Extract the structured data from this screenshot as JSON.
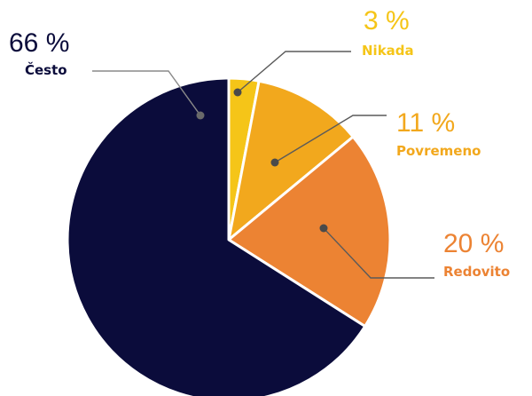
{
  "chart_data": {
    "type": "pie",
    "categories": [
      "Nikada",
      "Povremeno",
      "Redovito",
      "Često"
    ],
    "values": [
      3,
      11,
      20,
      66
    ],
    "value_labels": [
      "3 %",
      "11 %",
      "20 %",
      "66 %"
    ],
    "colors": [
      "#F5C518",
      "#F2A81D",
      "#EC8333",
      "#0B0C3B"
    ],
    "label_colors": [
      "#F5C518",
      "#F2A81D",
      "#EC8333",
      "#0B0C3B"
    ],
    "start_angle": "12 o'clock",
    "direction": "clockwise",
    "legend": "none"
  }
}
